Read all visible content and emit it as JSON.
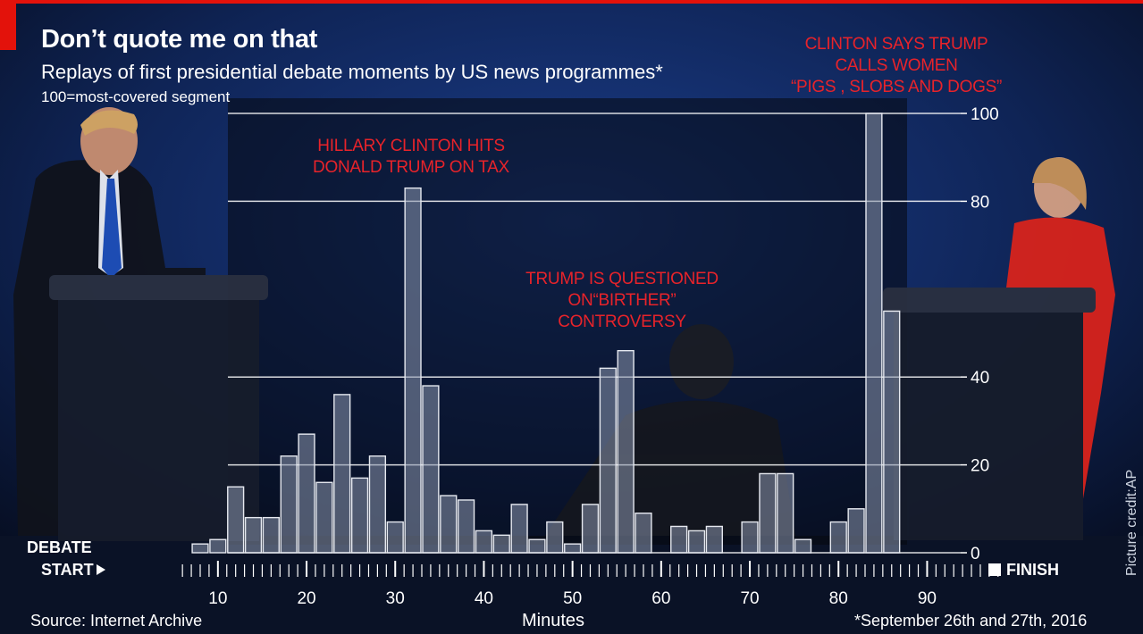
{
  "title": "Don’t quote me on that",
  "subtitle": "Replays of first presidential debate moments by US news programmes*",
  "note": "100=most-covered segment",
  "annotations": {
    "tax": "HILLARY CLINTON HITS\nDONALD TRUMP ON TAX",
    "birther": "TRUMP IS QUESTIONED\nON“BIRTHER”\nCONTROVERSY",
    "pigs": "CLINTON SAYS TRUMP\nCALLS WOMEN\n“PIGS , SLOBS AND DOGS”"
  },
  "start_label_1": "DEBATE",
  "start_label_2": "START",
  "finish_label": "FINISH",
  "source": "Source: Internet Archive",
  "footnote": "*September 26th and 27th, 2016",
  "credit": "Picture credit:AP",
  "colors": {
    "accent": "#e3120b",
    "annotation": "#e8232a",
    "bar_fill": "#8b95ad",
    "grid": "#ffffff"
  },
  "chart_data": {
    "type": "bar",
    "title": "Don’t quote me on that",
    "xlabel": "Minutes",
    "ylabel": "",
    "ylim": [
      0,
      100
    ],
    "yticks": [
      0,
      20,
      40,
      80,
      100
    ],
    "xticks": [
      10,
      20,
      30,
      40,
      50,
      60,
      70,
      80,
      90
    ],
    "xlim": [
      6,
      99
    ],
    "bar_width_minutes": 2,
    "series": [
      {
        "name": "Replays",
        "x": [
          8,
          10,
          12,
          14,
          16,
          18,
          20,
          22,
          24,
          26,
          28,
          30,
          32,
          34,
          36,
          38,
          40,
          42,
          44,
          46,
          48,
          50,
          52,
          54,
          56,
          58,
          60,
          62,
          64,
          66,
          68,
          70,
          72,
          74,
          76,
          78,
          80,
          82,
          84,
          86,
          88,
          90
        ],
        "values": [
          2,
          3,
          15,
          8,
          8,
          22,
          27,
          16,
          36,
          17,
          22,
          7,
          83,
          38,
          13,
          12,
          5,
          4,
          11,
          3,
          7,
          2,
          11,
          42,
          46,
          9,
          0,
          6,
          5,
          6,
          0,
          7,
          18,
          18,
          3,
          0,
          7,
          10,
          100,
          55,
          0,
          0
        ]
      }
    ]
  }
}
